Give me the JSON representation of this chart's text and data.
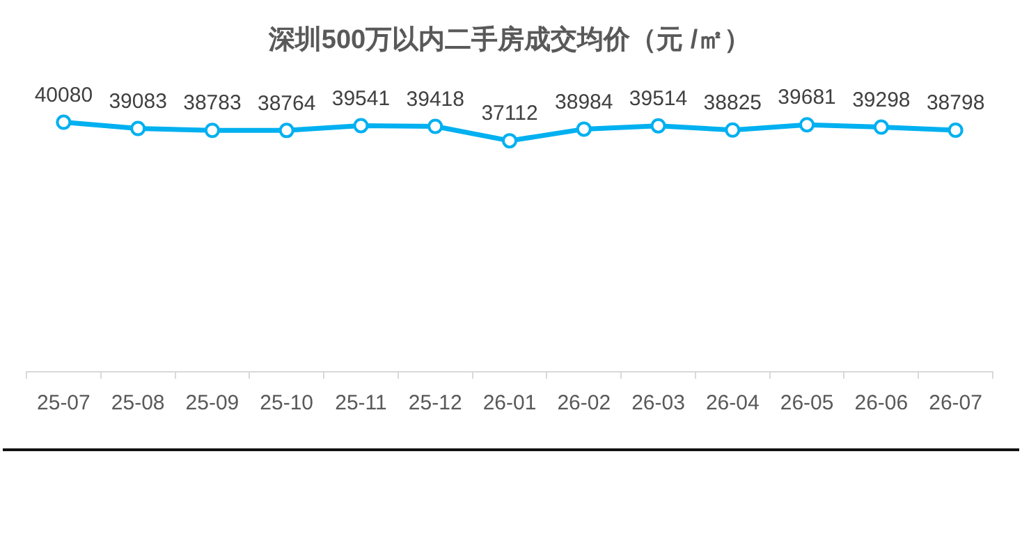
{
  "chart_data": {
    "type": "line",
    "title": "深圳500万以内二手房成交均价（元 /㎡）",
    "categories": [
      "25-07",
      "25-08",
      "25-09",
      "25-10",
      "25-11",
      "25-12",
      "26-01",
      "26-02",
      "26-03",
      "26-04",
      "26-05",
      "26-06",
      "26-07"
    ],
    "values": [
      40080,
      39083,
      38783,
      38764,
      39541,
      39418,
      37112,
      38984,
      39514,
      38825,
      39681,
      39298,
      38798
    ],
    "color": "#00b0f0",
    "tick_labels": "x",
    "data_labels": true,
    "marker": "circle",
    "line_style": "solid"
  }
}
